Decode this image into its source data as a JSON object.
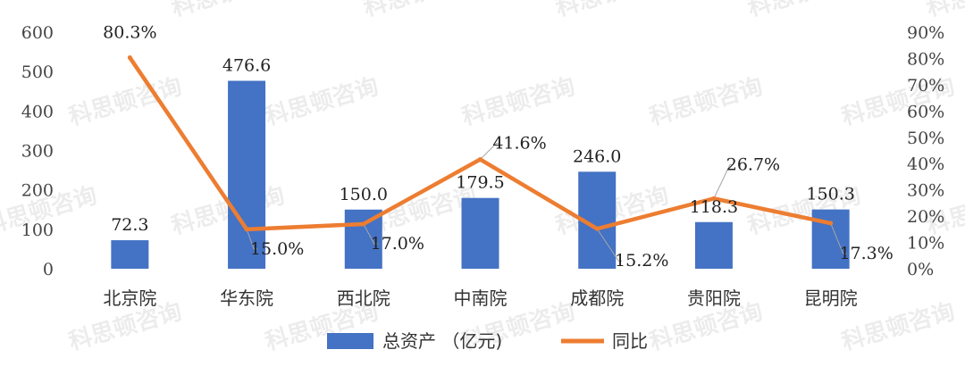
{
  "watermark": "科思顿咨询",
  "chart_data": {
    "type": "bar",
    "categories": [
      "北京院",
      "华东院",
      "西北院",
      "中南院",
      "成都院",
      "贵阳院",
      "昆明院"
    ],
    "series": [
      {
        "name": "总资产 （亿元)",
        "type": "bar",
        "axis": "left",
        "values": [
          72.3,
          476.6,
          150.0,
          179.5,
          246.0,
          118.3,
          150.3
        ],
        "labels": [
          "72.3",
          "476.6",
          "150.0",
          "179.5",
          "246.0",
          "118.3",
          "150.3"
        ],
        "color": "#4472c4"
      },
      {
        "name": "同比",
        "type": "line",
        "axis": "right",
        "values": [
          80.3,
          15.0,
          17.0,
          41.6,
          15.2,
          26.7,
          17.3
        ],
        "labels": [
          "80.3%",
          "15.0%",
          "17.0%",
          "41.6%",
          "15.2%",
          "26.7%",
          "17.3%"
        ],
        "color": "#ed7d31"
      }
    ],
    "y_left": {
      "min": 0,
      "max": 600,
      "ticks": [
        "0",
        "100",
        "200",
        "300",
        "400",
        "500",
        "600"
      ]
    },
    "y_right": {
      "min": 0,
      "max": 90,
      "ticks": [
        "0%",
        "10%",
        "20%",
        "30%",
        "40%",
        "50%",
        "60%",
        "70%",
        "80%",
        "90%"
      ]
    },
    "grid": false,
    "legend_position": "bottom"
  }
}
